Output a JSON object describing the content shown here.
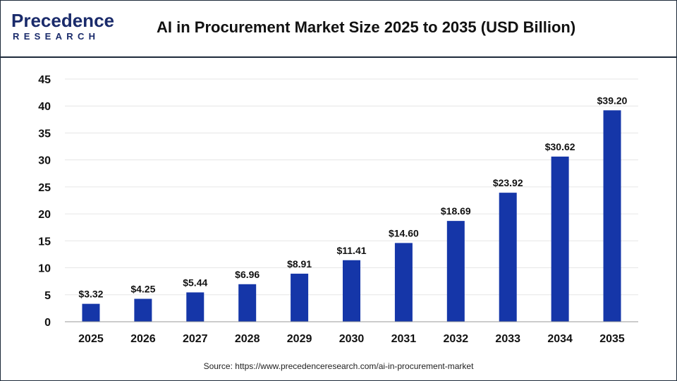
{
  "header": {
    "logo_top": "Precedence",
    "logo_bottom": "RESEARCH",
    "title": "AI in Procurement Market Size 2025 to 2035 (USD Billion)"
  },
  "footer": {
    "source": "Source: https://www.precedenceresearch.com/ai-in-procurement-market"
  },
  "colors": {
    "bar": "#1536a8",
    "brand": "#1a2b6b",
    "grid": "#e6e6e6"
  },
  "chart_data": {
    "type": "bar",
    "title": "AI in Procurement Market Size 2025 to 2035 (USD Billion)",
    "xlabel": "",
    "ylabel": "",
    "categories": [
      "2025",
      "2026",
      "2027",
      "2028",
      "2029",
      "2030",
      "2031",
      "2032",
      "2033",
      "2034",
      "2035"
    ],
    "values": [
      3.32,
      4.25,
      5.44,
      6.96,
      8.91,
      11.41,
      14.6,
      18.69,
      23.92,
      30.62,
      39.2
    ],
    "data_labels": [
      "$3.32",
      "$4.25",
      "$5.44",
      "$6.96",
      "$8.91",
      "$11.41",
      "$14.60",
      "$18.69",
      "$23.92",
      "$30.62",
      "$39.20"
    ],
    "ylim": [
      0,
      45
    ],
    "yticks": [
      0,
      5,
      10,
      15,
      20,
      25,
      30,
      35,
      40,
      45
    ],
    "grid": true,
    "legend": "none"
  }
}
